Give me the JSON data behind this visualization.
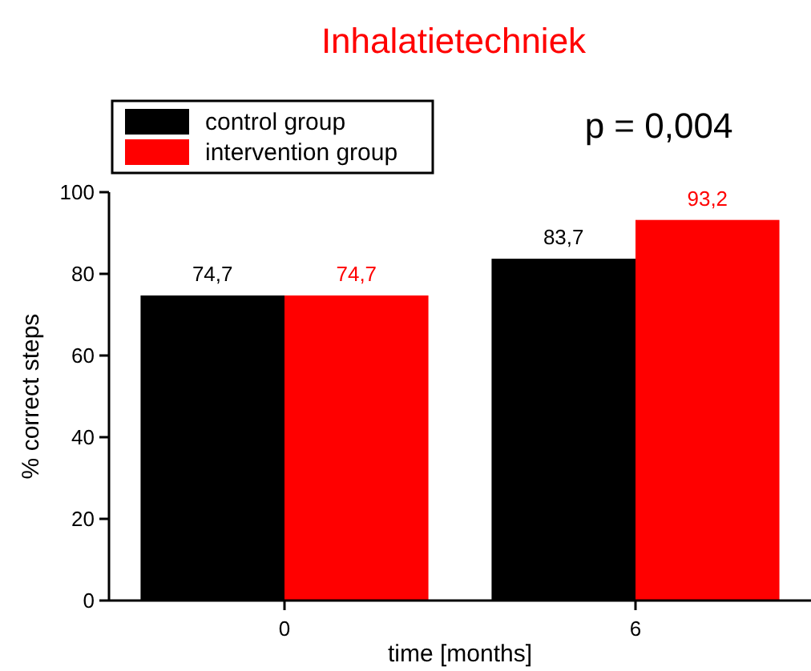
{
  "chart_data": {
    "type": "bar",
    "title": "Inhalatietechniek",
    "xlabel": "time [months]",
    "ylabel": "% correct steps",
    "categories": [
      "0",
      "6"
    ],
    "series": [
      {
        "name": "control group",
        "color": "#000000",
        "values": [
          74.7,
          83.7
        ],
        "value_labels": [
          "74,7",
          "83,7"
        ]
      },
      {
        "name": "intervention group",
        "color": "#ff0000",
        "values": [
          74.7,
          93.2
        ],
        "value_labels": [
          "74,7",
          "93,2"
        ]
      }
    ],
    "ylim": [
      0,
      100
    ],
    "yticks": [
      0,
      20,
      40,
      60,
      80,
      100
    ],
    "legend": "top left",
    "grid": false,
    "annotations": [
      "p = 0,004"
    ]
  }
}
